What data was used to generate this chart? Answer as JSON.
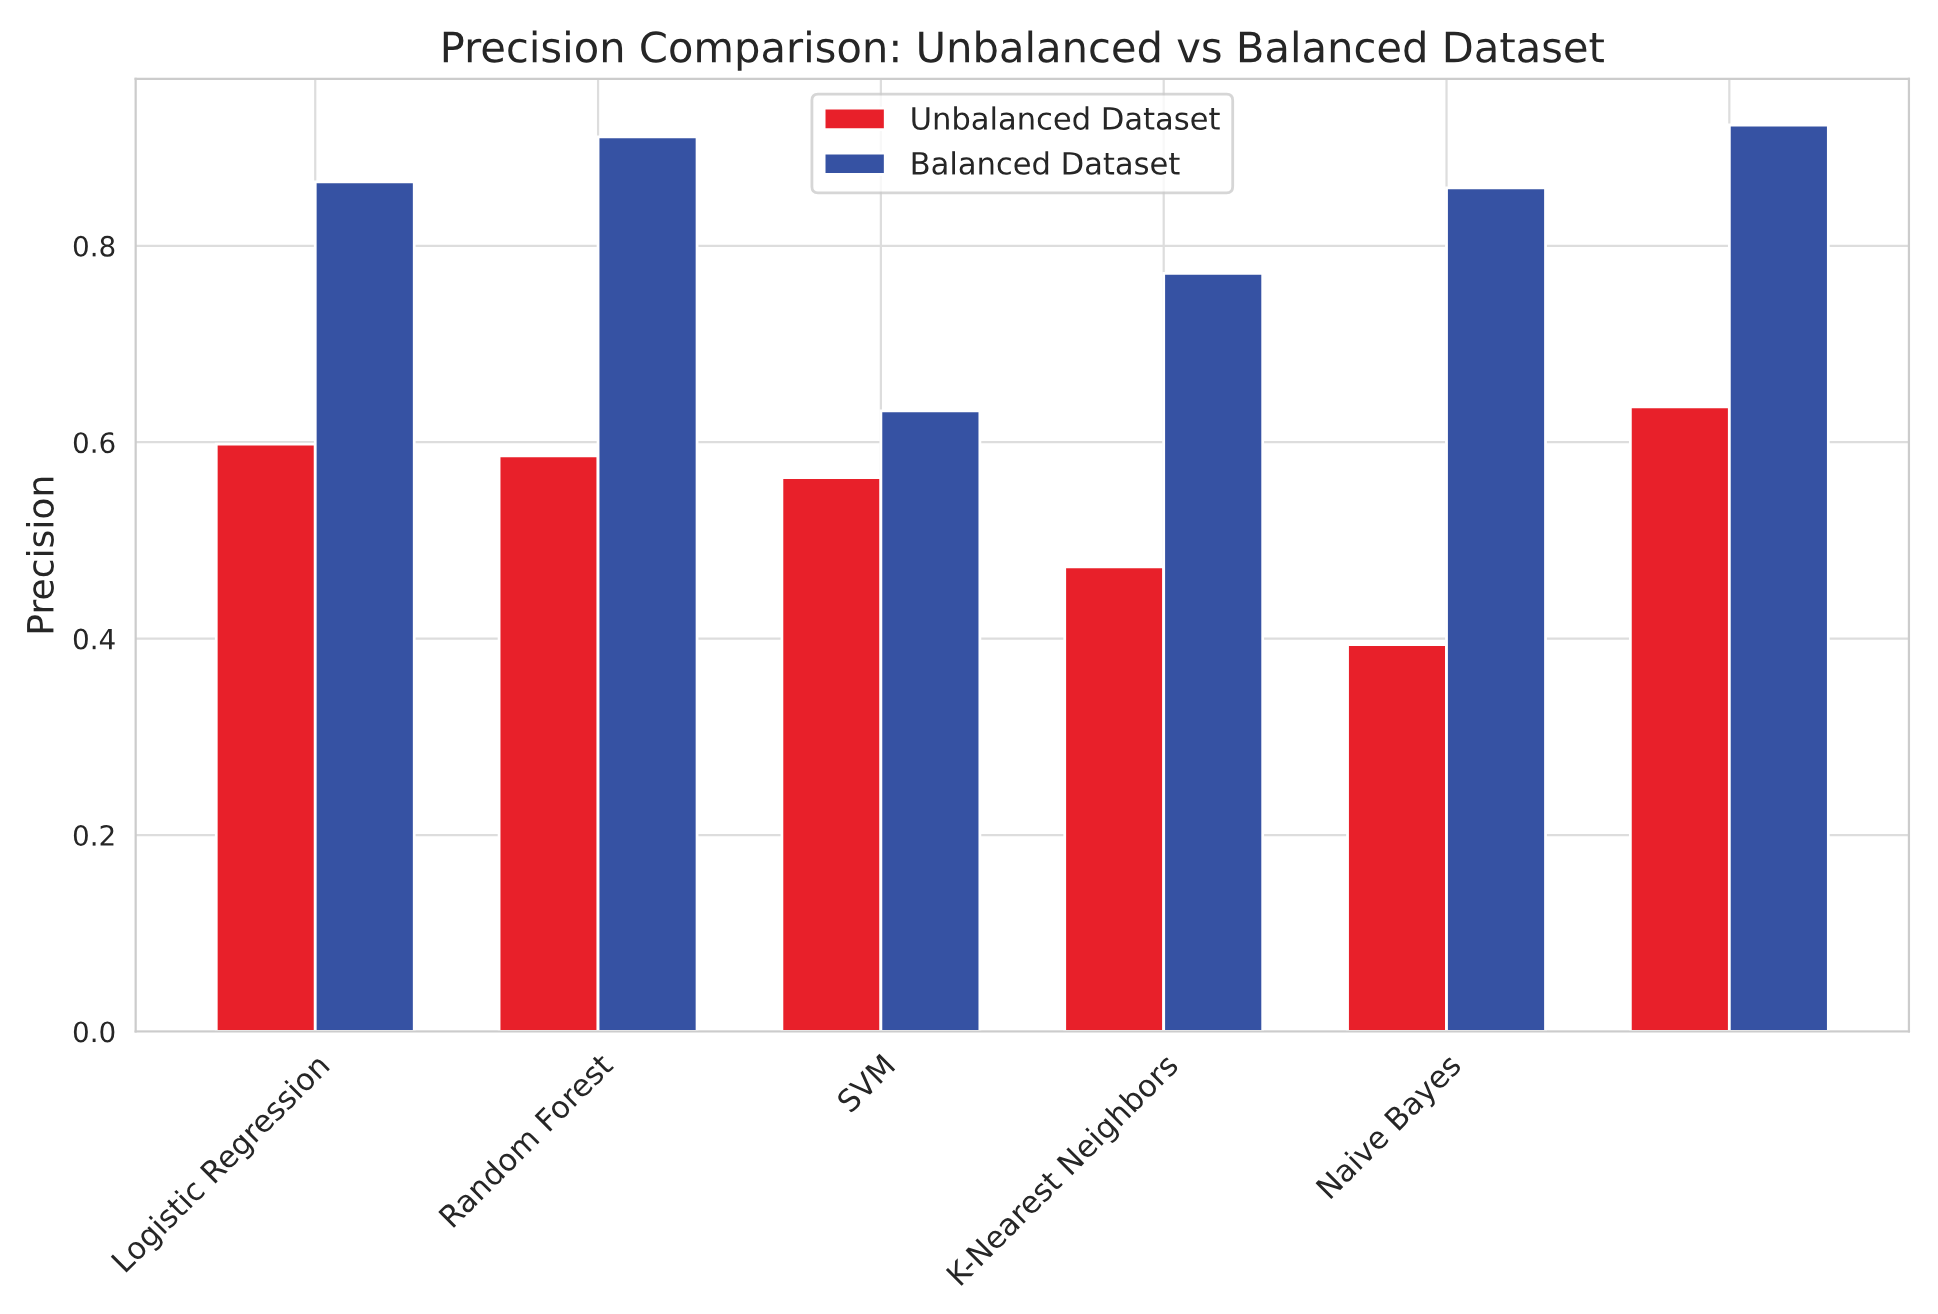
{
  "chart_data": {
    "type": "bar",
    "title": "Precision Comparison: Unbalanced vs Balanced Dataset",
    "ylabel": "Precision",
    "categories": [
      "Logistic Regression",
      "Random Forest",
      "SVM",
      "K-Nearest Neighbors",
      "Naive Bayes",
      null
    ],
    "series": [
      {
        "name": "Unbalanced Dataset",
        "color": "#e8202a",
        "values": [
          0.598,
          0.586,
          0.564,
          0.473,
          0.394,
          0.636
        ]
      },
      {
        "name": "Balanced Dataset",
        "color": "#3652a3",
        "values": [
          0.865,
          0.911,
          0.632,
          0.772,
          0.859,
          0.923
        ]
      }
    ],
    "ylim": [
      0,
      0.97
    ],
    "yticks": [
      {
        "value": 0,
        "label": "0.0"
      },
      0.2,
      0.4,
      0.6,
      0.8
    ],
    "grid": true,
    "legend": "top"
  }
}
